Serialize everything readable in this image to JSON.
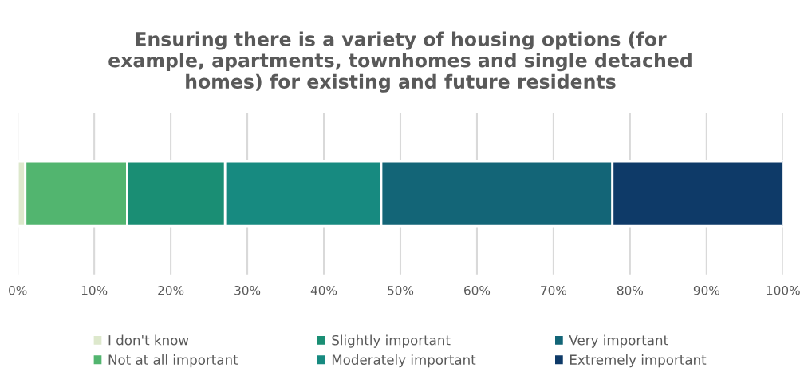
{
  "chart_data": {
    "type": "bar",
    "orientation": "horizontal",
    "stacked": true,
    "title": "Ensuring there is a variety of housing options (for\nexample, apartments, townhomes and single detached\nhomes) for existing and future residents",
    "categories": [
      null
    ],
    "series": [
      {
        "name": "I don't know",
        "color": "#dde8cc",
        "values": [
          1
        ]
      },
      {
        "name": "Not at all important",
        "color": "#52b56f",
        "values": [
          13.3
        ]
      },
      {
        "name": "Slightly important",
        "color": "#1a8e74",
        "values": [
          12.8
        ]
      },
      {
        "name": "Moderately important",
        "color": "#178a80",
        "values": [
          20.4
        ]
      },
      {
        "name": "Very important",
        "color": "#136577",
        "values": [
          30.2
        ]
      },
      {
        "name": "Extremely important",
        "color": "#0e3a68",
        "values": [
          22.3
        ]
      }
    ],
    "xlim": [
      0,
      100
    ],
    "xticks": [
      {
        "value": 0,
        "label": "0%"
      },
      {
        "value": 10,
        "label": "10%"
      },
      {
        "value": 20,
        "label": "20%"
      },
      {
        "value": 30,
        "label": "30%"
      },
      {
        "value": 40,
        "label": "40%"
      },
      {
        "value": 50,
        "label": "50%"
      },
      {
        "value": 60,
        "label": "60%"
      },
      {
        "value": 70,
        "label": "70%"
      },
      {
        "value": 80,
        "label": "80%"
      },
      {
        "value": 90,
        "label": "90%"
      },
      {
        "value": 100,
        "label": "100%"
      }
    ],
    "grid": "x",
    "legend": "bottom"
  }
}
